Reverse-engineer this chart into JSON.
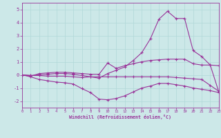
{
  "xlabel": "Windchill (Refroidissement éolien,°C)",
  "bg_color": "#cce8e8",
  "grid_color": "#b0d8d8",
  "line_color": "#993399",
  "xlim": [
    0,
    23
  ],
  "ylim": [
    -2.5,
    5.5
  ],
  "xticks": [
    0,
    1,
    2,
    3,
    4,
    5,
    6,
    7,
    8,
    9,
    10,
    11,
    12,
    13,
    14,
    15,
    16,
    17,
    18,
    19,
    20,
    21,
    22,
    23
  ],
  "yticks": [
    -2,
    -1,
    0,
    1,
    2,
    3,
    4,
    5
  ],
  "line1_x": [
    0,
    1,
    2,
    3,
    4,
    5,
    6,
    7,
    8,
    9,
    10,
    11,
    12,
    13,
    14,
    15,
    16,
    17,
    18,
    19,
    20,
    21,
    22,
    23
  ],
  "line1_y": [
    0.0,
    -0.1,
    0.1,
    0.15,
    0.2,
    0.2,
    0.15,
    0.1,
    0.05,
    0.05,
    0.9,
    0.5,
    0.7,
    0.85,
    1.0,
    1.1,
    1.15,
    1.2,
    1.2,
    1.2,
    0.85,
    0.75,
    0.75,
    0.7
  ],
  "line2_x": [
    0,
    1,
    2,
    3,
    4,
    5,
    6,
    7,
    8,
    9,
    10,
    11,
    12,
    13,
    14,
    15,
    16,
    17,
    18,
    19,
    20,
    21,
    22,
    23
  ],
  "line2_y": [
    0.0,
    -0.05,
    -0.05,
    -0.1,
    -0.1,
    -0.1,
    -0.15,
    -0.2,
    -0.15,
    -0.15,
    -0.15,
    -0.15,
    -0.15,
    -0.15,
    -0.15,
    -0.15,
    -0.15,
    -0.15,
    -0.2,
    -0.25,
    -0.3,
    -0.35,
    -0.8,
    -1.25
  ],
  "line3_x": [
    0,
    1,
    2,
    3,
    4,
    5,
    6,
    7,
    8,
    9,
    10,
    11,
    12,
    13,
    14,
    15,
    16,
    17,
    18,
    19,
    20,
    21,
    22,
    23
  ],
  "line3_y": [
    0.0,
    -0.05,
    0.0,
    0.05,
    0.1,
    0.1,
    0.05,
    -0.05,
    -0.15,
    -0.25,
    0.1,
    0.35,
    0.6,
    1.1,
    1.7,
    2.75,
    4.25,
    4.85,
    4.3,
    4.3,
    1.85,
    1.4,
    0.75,
    -1.3
  ],
  "line4_x": [
    0,
    1,
    2,
    3,
    4,
    5,
    6,
    7,
    8,
    9,
    10,
    11,
    12,
    13,
    14,
    15,
    16,
    17,
    18,
    19,
    20,
    21,
    22,
    23
  ],
  "line4_y": [
    0.0,
    -0.15,
    -0.35,
    -0.45,
    -0.55,
    -0.6,
    -0.7,
    -1.05,
    -1.35,
    -1.85,
    -1.9,
    -1.8,
    -1.6,
    -1.3,
    -1.0,
    -0.85,
    -0.65,
    -0.65,
    -0.75,
    -0.85,
    -1.0,
    -1.1,
    -1.2,
    -1.35
  ]
}
